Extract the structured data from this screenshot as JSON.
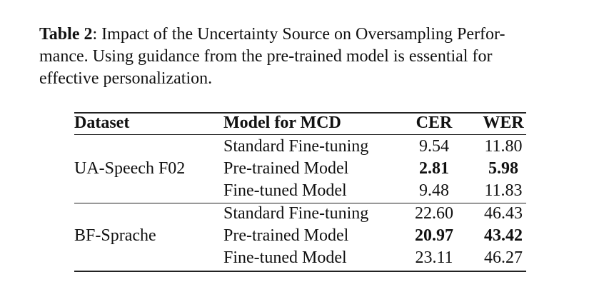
{
  "caption": {
    "label": "Table 2",
    "lines": [
      ": Impact of the Uncertainty Source on Oversampling Perfor-",
      "mance. Using guidance from the pre-trained model is essential for",
      "effective personalization."
    ]
  },
  "table": {
    "headers": [
      "Dataset",
      "Model for MCD",
      "CER",
      "WER"
    ],
    "groups": [
      {
        "dataset": "UA-Speech F02",
        "rows": [
          {
            "model": "Standard Fine-tuning",
            "cer": "9.54",
            "wer": "11.80",
            "bold": false
          },
          {
            "model": "Pre-trained Model",
            "cer": "2.81",
            "wer": "5.98",
            "bold": true
          },
          {
            "model": "Fine-tuned Model",
            "cer": "9.48",
            "wer": "11.83",
            "bold": false
          }
        ]
      },
      {
        "dataset": "BF-Sprache",
        "rows": [
          {
            "model": "Standard Fine-tuning",
            "cer": "22.60",
            "wer": "46.43",
            "bold": false
          },
          {
            "model": "Pre-trained Model",
            "cer": "20.97",
            "wer": "43.42",
            "bold": true
          },
          {
            "model": "Fine-tuned Model",
            "cer": "23.11",
            "wer": "46.27",
            "bold": false
          }
        ]
      }
    ]
  }
}
